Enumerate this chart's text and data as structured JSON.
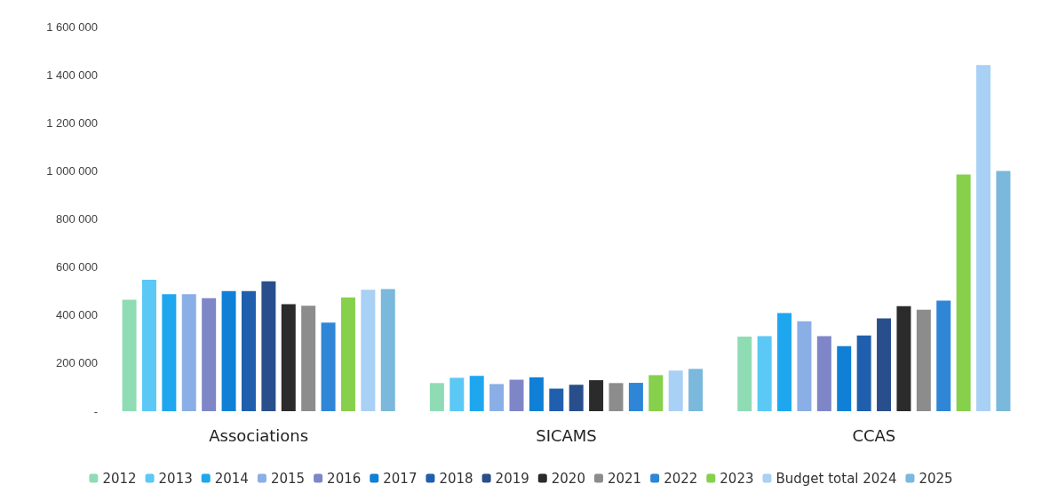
{
  "chart_data": {
    "type": "bar",
    "categories": [
      "Associations",
      "SICAMS",
      "CCAS"
    ],
    "ylim": [
      0,
      1600000
    ],
    "yticks": [
      {
        "value": 0,
        "label": "-"
      },
      {
        "value": 200000,
        "label": "200 000"
      },
      {
        "value": 400000,
        "label": "400 000"
      },
      {
        "value": 600000,
        "label": "600 000"
      },
      {
        "value": 800000,
        "label": "800 000"
      },
      {
        "value": 1000000,
        "label": "1 000 000"
      },
      {
        "value": 1200000,
        "label": "1 200 000"
      },
      {
        "value": 1400000,
        "label": "1 400 000"
      },
      {
        "value": 1600000,
        "label": "1 600 000"
      }
    ],
    "grid": false,
    "legend": "bottom",
    "series": [
      {
        "name": "2012",
        "color": "#8fdcb4",
        "values": [
          464000,
          117000,
          310000
        ]
      },
      {
        "name": "2013",
        "color": "#5bc8f5",
        "values": [
          547000,
          139000,
          312000
        ]
      },
      {
        "name": "2014",
        "color": "#1ea7ef",
        "values": [
          487000,
          147000,
          408000
        ]
      },
      {
        "name": "2015",
        "color": "#8aaee6",
        "values": [
          487000,
          113000,
          374000
        ]
      },
      {
        "name": "2016",
        "color": "#7f86c8",
        "values": [
          470000,
          131000,
          312000
        ]
      },
      {
        "name": "2017",
        "color": "#0f80d6",
        "values": [
          500000,
          141000,
          271000
        ]
      },
      {
        "name": "2018",
        "color": "#1f5fae",
        "values": [
          500000,
          94000,
          315000
        ]
      },
      {
        "name": "2019",
        "color": "#284f8c",
        "values": [
          540000,
          110000,
          386000
        ]
      },
      {
        "name": "2020",
        "color": "#2b2b2b",
        "values": [
          445000,
          129000,
          437000
        ]
      },
      {
        "name": "2021",
        "color": "#8c8c8c",
        "values": [
          439000,
          117000,
          422000
        ]
      },
      {
        "name": "2022",
        "color": "#2f86d6",
        "values": [
          369000,
          118000,
          460000
        ]
      },
      {
        "name": "2023",
        "color": "#86d04c",
        "values": [
          473000,
          150000,
          985000
        ]
      },
      {
        "name": "Budget total 2024",
        "color": "#a9d0f5",
        "values": [
          505000,
          169000,
          1440000
        ]
      },
      {
        "name": "2025",
        "color": "#7ab8dc",
        "values": [
          508000,
          176000,
          1000000
        ]
      }
    ]
  }
}
